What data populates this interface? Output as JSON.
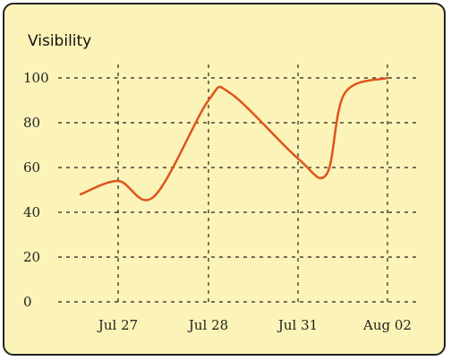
{
  "chart_data": {
    "type": "line",
    "title": "Visibility",
    "xlabel": "",
    "ylabel": "",
    "x_ticks": [
      "Jul 27",
      "Jul 28",
      "Jul 31",
      "Aug 02"
    ],
    "ylim": [
      0,
      100
    ],
    "y_ticks": [
      "0",
      "20",
      "40",
      "60",
      "80",
      "100"
    ],
    "grid": true,
    "series": [
      {
        "color": "#e0541c",
        "points": [
          {
            "x": "Jul 26",
            "y": 48
          },
          {
            "x": "Jul 27",
            "y": 54
          },
          {
            "x": "Jul 27.4",
            "y": 47
          },
          {
            "x": "Jul 28",
            "y": 90
          },
          {
            "x": "Jul 28.4",
            "y": 93
          },
          {
            "x": "Jul 31",
            "y": 64
          },
          {
            "x": "Jul 31.1",
            "y": 57
          },
          {
            "x": "Jul 31.5",
            "y": 93
          },
          {
            "x": "Aug 02",
            "y": 100
          }
        ]
      }
    ]
  }
}
